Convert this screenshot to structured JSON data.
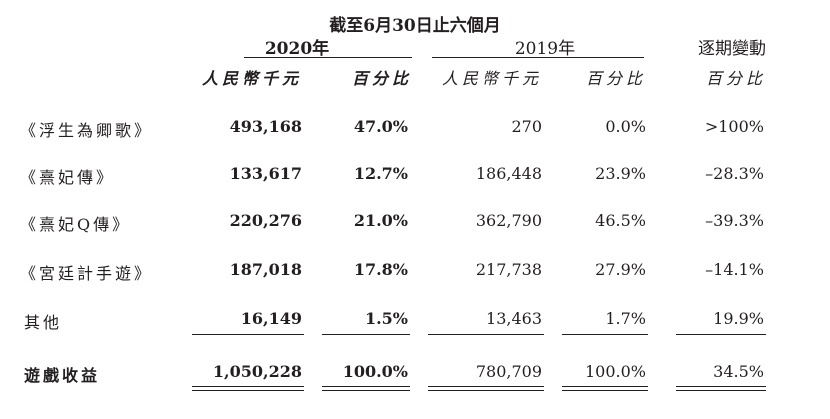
{
  "header": {
    "period_title": "截至6月30日止六個月",
    "year_2020": "2020年",
    "year_2019": "2019年",
    "change_title": "逐期變動",
    "col_rmb_2020": "人民幣千元",
    "col_pct_2020": "百分比",
    "col_rmb_2019": "人民幣千元",
    "col_pct_2019": "百分比",
    "col_pct_change": "百分比"
  },
  "rows": [
    {
      "name": "《浮生為卿歌》",
      "rmb_2020": "493,168",
      "pct_2020": "47.0%",
      "rmb_2019": "270",
      "pct_2019": "0.0%",
      "change": ">100%"
    },
    {
      "name": "《熹妃傳》",
      "rmb_2020": "133,617",
      "pct_2020": "12.7%",
      "rmb_2019": "186,448",
      "pct_2019": "23.9%",
      "change": "–28.3%"
    },
    {
      "name": "《熹妃Q傳》",
      "rmb_2020": "220,276",
      "pct_2020": "21.0%",
      "rmb_2019": "362,790",
      "pct_2019": "46.5%",
      "change": "–39.3%"
    },
    {
      "name": "《宮廷計手遊》",
      "rmb_2020": "187,018",
      "pct_2020": "17.8%",
      "rmb_2019": "217,738",
      "pct_2019": "27.9%",
      "change": "–14.1%"
    },
    {
      "name": "其他",
      "rmb_2020": "16,149",
      "pct_2020": "1.5%",
      "rmb_2019": "13,463",
      "pct_2019": "1.7%",
      "change": "19.9%"
    }
  ],
  "total": {
    "name": "遊戲收益",
    "rmb_2020": "1,050,228",
    "pct_2020": "100.0%",
    "rmb_2019": "780,709",
    "pct_2019": "100.0%",
    "change": "34.5%"
  }
}
